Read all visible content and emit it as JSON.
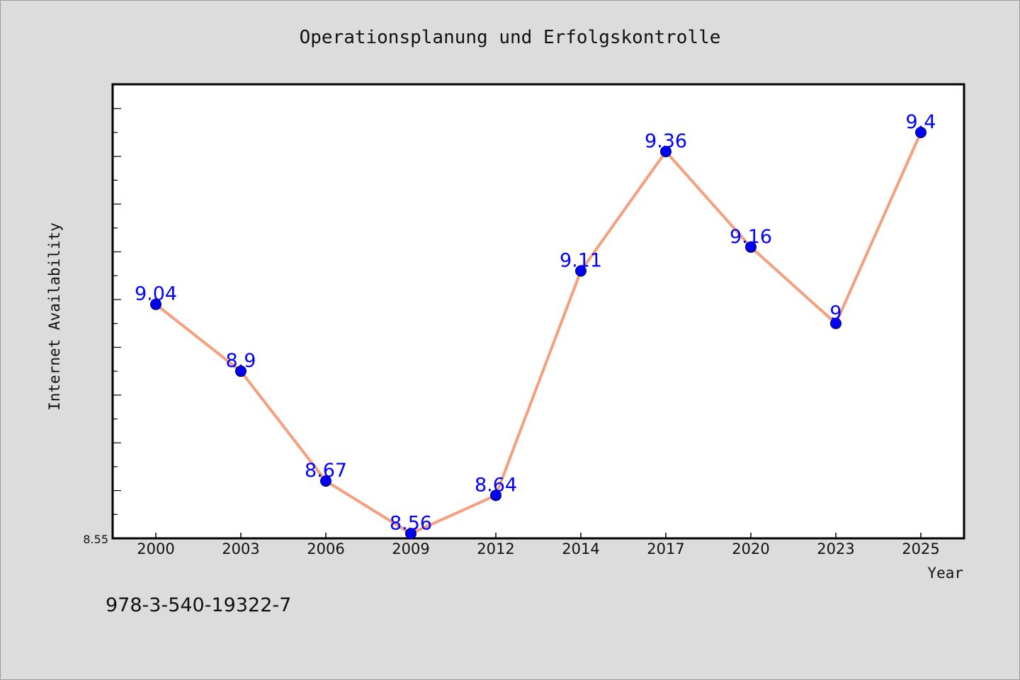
{
  "chart_data": {
    "type": "line",
    "title": "Operationsplanung und Erfolgskontrolle",
    "xlabel": "Year",
    "ylabel": "Internet Availability",
    "categories": [
      "2000",
      "2003",
      "2006",
      "2009",
      "2012",
      "2014",
      "2017",
      "2020",
      "2023",
      "2025"
    ],
    "series": [
      {
        "values": [
          9.04,
          8.9,
          8.67,
          8.56,
          8.64,
          9.11,
          9.36,
          9.16,
          9.0,
          9.4
        ],
        "data_labels": [
          "9.04",
          "8.9",
          "8.67",
          "8.56",
          "8.64",
          "9.11",
          "9.36",
          "9.16",
          "9",
          "9.4"
        ],
        "line_color": "#f4a07f",
        "marker_color": "#0000ff"
      }
    ],
    "ylim": [
      8.55,
      9.5
    ],
    "y_tick_labels": [
      "8.55"
    ],
    "grid": false,
    "legend": "none",
    "plot_background": "#ffffff",
    "figure_background": "#dcdcdc"
  },
  "footer_text": "978-3-540-19322-7"
}
